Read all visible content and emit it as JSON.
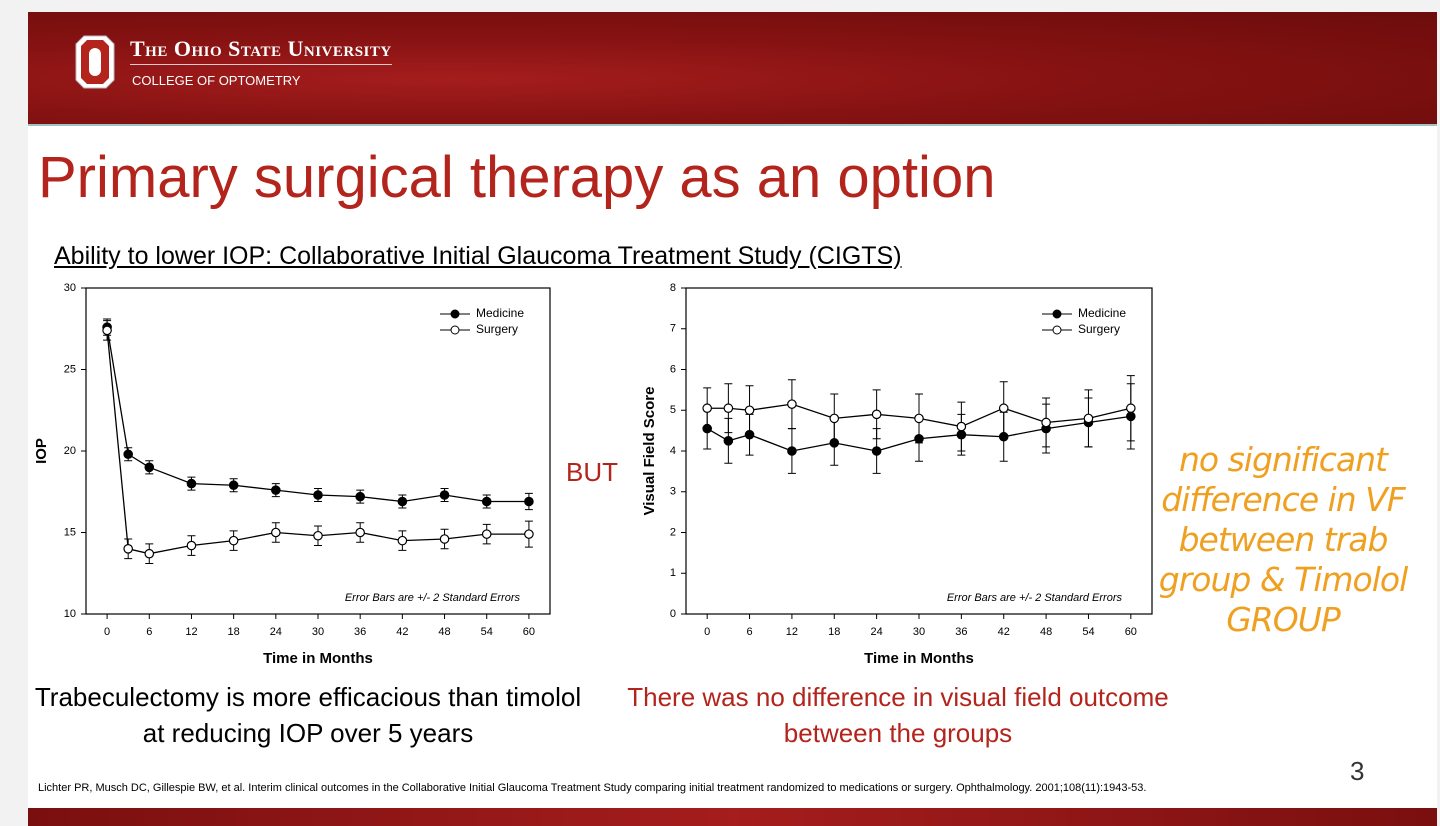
{
  "header": {
    "university": "The Ohio State University",
    "college": "COLLEGE OF OPTOMETRY"
  },
  "title": "Primary surgical therapy as an option",
  "subtitle": "Ability to lower IOP: Collaborative Initial Glaucoma Treatment Study (CIGTS)",
  "between_label": "BUT",
  "chart_data": [
    {
      "type": "line",
      "x_label": "Time in Months",
      "y_label": "IOP",
      "note": "Error Bars are +/- 2 Standard Errors",
      "x": [
        0,
        3,
        6,
        12,
        18,
        24,
        30,
        36,
        42,
        48,
        54,
        60
      ],
      "xlim": [
        -3,
        63
      ],
      "xticks": [
        0,
        6,
        12,
        18,
        24,
        30,
        36,
        42,
        48,
        54,
        60
      ],
      "ylim": [
        10,
        30
      ],
      "yticks": [
        10,
        15,
        20,
        25,
        30
      ],
      "legend": "upper right",
      "series": [
        {
          "name": "Medicine",
          "color": "#000000",
          "filled": true,
          "values": [
            27.6,
            19.8,
            19.0,
            18.0,
            17.9,
            17.6,
            17.3,
            17.2,
            16.9,
            17.3,
            16.9,
            16.9
          ],
          "errors": [
            0.5,
            0.4,
            0.4,
            0.4,
            0.4,
            0.4,
            0.4,
            0.4,
            0.4,
            0.4,
            0.4,
            0.5
          ]
        },
        {
          "name": "Surgery",
          "color": "#000000",
          "filled": false,
          "values": [
            27.4,
            14.0,
            13.7,
            14.2,
            14.5,
            15.0,
            14.8,
            15.0,
            14.5,
            14.6,
            14.9,
            14.9
          ],
          "errors": [
            0.6,
            0.6,
            0.6,
            0.6,
            0.6,
            0.6,
            0.6,
            0.6,
            0.6,
            0.6,
            0.6,
            0.8
          ]
        }
      ]
    },
    {
      "type": "line",
      "x_label": "Time in Months",
      "y_label": "Visual Field Score",
      "note": "Error Bars are +/- 2 Standard Errors",
      "x": [
        0,
        3,
        6,
        12,
        18,
        24,
        30,
        36,
        42,
        48,
        54,
        60
      ],
      "xlim": [
        -3,
        63
      ],
      "xticks": [
        0,
        6,
        12,
        18,
        24,
        30,
        36,
        42,
        48,
        54,
        60
      ],
      "ylim": [
        0,
        8
      ],
      "yticks": [
        0,
        1,
        2,
        3,
        4,
        5,
        6,
        7,
        8
      ],
      "legend": "upper right",
      "series": [
        {
          "name": "Medicine",
          "color": "#000000",
          "filled": true,
          "values": [
            4.55,
            4.25,
            4.4,
            4.0,
            4.2,
            4.0,
            4.3,
            4.4,
            4.35,
            4.55,
            4.7,
            4.85
          ],
          "errors": [
            0.5,
            0.55,
            0.5,
            0.55,
            0.55,
            0.55,
            0.55,
            0.5,
            0.6,
            0.6,
            0.6,
            0.8
          ]
        },
        {
          "name": "Surgery",
          "color": "#000000",
          "filled": false,
          "values": [
            5.05,
            5.05,
            5.0,
            5.15,
            4.8,
            4.9,
            4.8,
            4.6,
            5.05,
            4.7,
            4.8,
            5.05
          ],
          "errors": [
            0.5,
            0.6,
            0.6,
            0.6,
            0.6,
            0.6,
            0.6,
            0.6,
            0.65,
            0.6,
            0.7,
            0.8
          ]
        }
      ]
    }
  ],
  "captions": [
    "Trabeculectomy is more efficacious than timolol at reducing IOP over 5 years",
    "There was no difference in visual field outcome between the groups"
  ],
  "annotation": [
    "no significant",
    "difference in VF",
    "between trab",
    "group & Timolol",
    "GROUP"
  ],
  "slide_number": "3",
  "citation": "Lichter PR, Musch DC, Gillespie BW, et al. Interim clinical outcomes in the Collaborative Initial Glaucoma Treatment Study comparing initial treatment randomized to medications or surgery. Ophthalmology. 2001;108(11):1943-53."
}
